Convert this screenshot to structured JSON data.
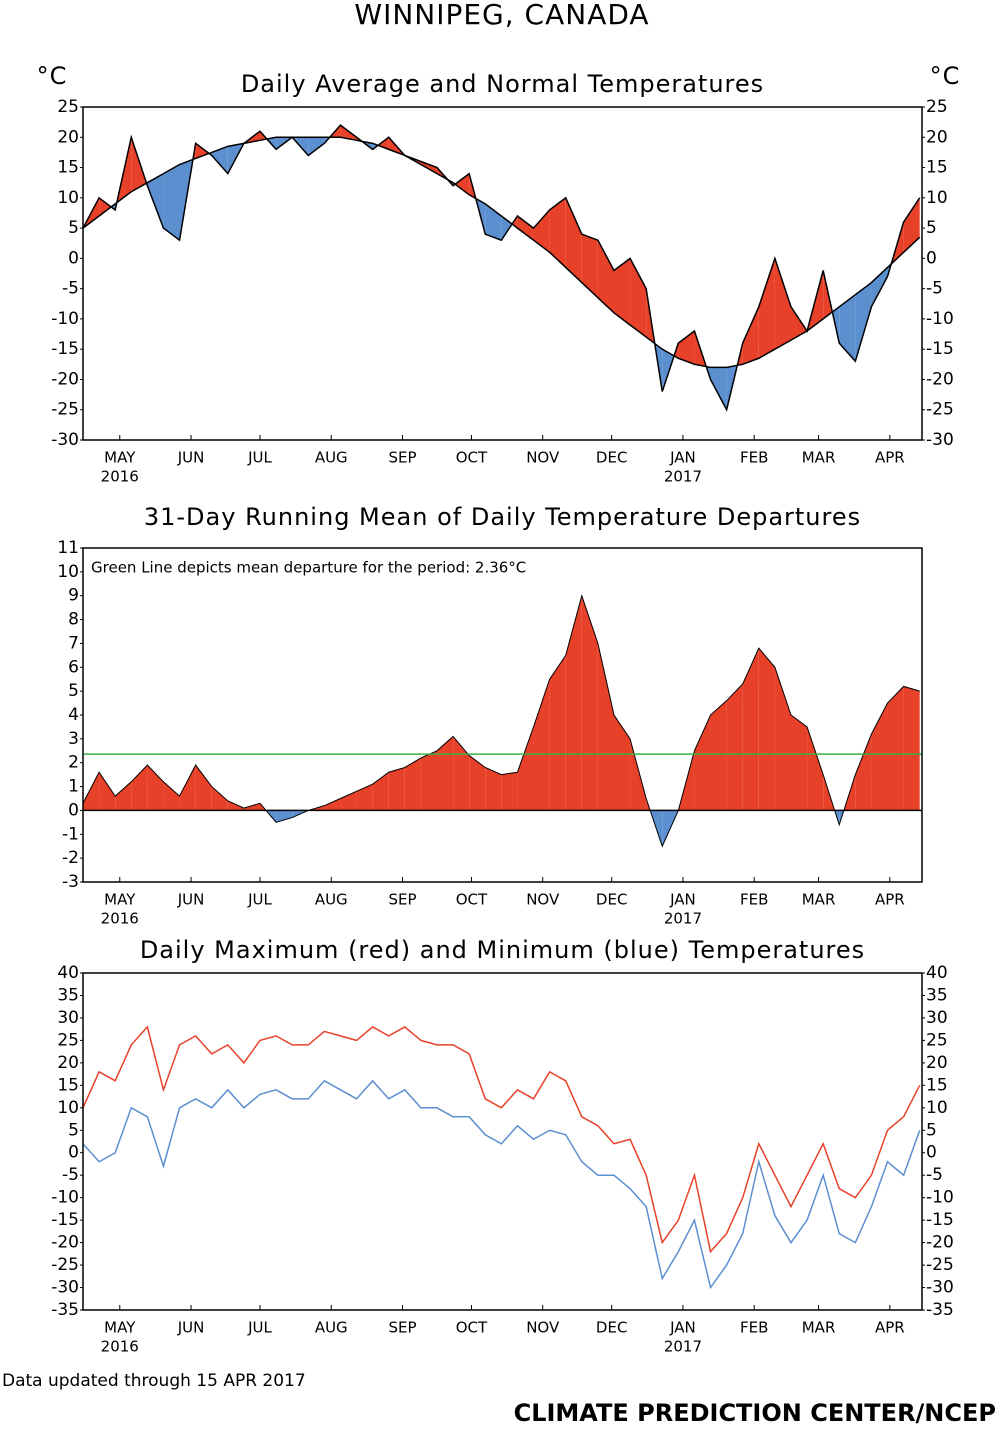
{
  "title": "WINNIPEG, CANADA",
  "footer_left": "Data updated through 15 APR 2017",
  "footer_right": "CLIMATE PREDICTION CENTER/NCEP",
  "chart_data": [
    {
      "type": "departure",
      "title": "Daily Average and Normal Temperatures",
      "y_unit": "°C",
      "right_axis": true,
      "x": [
        0,
        7,
        14,
        21,
        28,
        35,
        42,
        49,
        56,
        63,
        70,
        77,
        84,
        91,
        98,
        105,
        112,
        119,
        126,
        133,
        140,
        147,
        154,
        161,
        168,
        175,
        182,
        189,
        196,
        203,
        210,
        217,
        224,
        231,
        238,
        245,
        252,
        259,
        266,
        273,
        280,
        287,
        294,
        301,
        308,
        315,
        322,
        329,
        336,
        343,
        350,
        357,
        364
      ],
      "xlim": [
        0,
        365
      ],
      "xticks": [
        {
          "value": 16,
          "label": "MAY"
        },
        {
          "value": 47,
          "label": "JUN"
        },
        {
          "value": 77,
          "label": "JUL"
        },
        {
          "value": 108,
          "label": "AUG"
        },
        {
          "value": 139,
          "label": "SEP"
        },
        {
          "value": 169,
          "label": "OCT"
        },
        {
          "value": 200,
          "label": "NOV"
        },
        {
          "value": 230,
          "label": "DEC"
        },
        {
          "value": 261,
          "label": "JAN"
        },
        {
          "value": 292,
          "label": "FEB"
        },
        {
          "value": 320,
          "label": "MAR"
        },
        {
          "value": 351,
          "label": "APR"
        }
      ],
      "year_labels": [
        {
          "value": 16,
          "label": "2016"
        },
        {
          "value": 261,
          "label": "2017"
        }
      ],
      "ylim": [
        -30,
        25
      ],
      "yticks": [
        -30,
        -25,
        -20,
        -15,
        -10,
        -5,
        0,
        5,
        10,
        15,
        20,
        25
      ],
      "pos_color": "#e8412a",
      "neg_color": "#5b8fd0",
      "series": [
        {
          "color": "#000000",
          "values": [
            5,
            10,
            8,
            20,
            12,
            5,
            3,
            19,
            17,
            14,
            19,
            21,
            18,
            20,
            17,
            19,
            22,
            20,
            18,
            20,
            17,
            16,
            15,
            12,
            14,
            4,
            3,
            7,
            5,
            8,
            10,
            4,
            3,
            -2,
            0,
            -5,
            -22,
            -14,
            -12,
            -20,
            -25,
            -14,
            -8,
            0,
            -8,
            -12,
            -2,
            -14,
            -17,
            -8,
            -3,
            6,
            10
          ]
        },
        {
          "color": "#000000",
          "values": [
            5,
            7,
            9,
            11,
            12.5,
            14,
            15.5,
            16.5,
            17.5,
            18.5,
            19,
            19.5,
            20,
            20,
            20,
            20,
            20,
            19.5,
            19,
            18,
            17,
            15.5,
            14,
            12.5,
            10.5,
            9,
            7,
            5,
            3,
            1,
            -1.5,
            -4,
            -6.5,
            -9,
            -11,
            -13,
            -15,
            -16.5,
            -17.5,
            -18,
            -18,
            -17.5,
            -16.5,
            -15,
            -13.5,
            -12,
            -10,
            -8,
            -6,
            -4,
            -1.5,
            1,
            3.5
          ]
        }
      ]
    },
    {
      "type": "area",
      "title": "31-Day Running Mean of Daily Temperature Departures",
      "right_axis": false,
      "x": [
        0,
        7,
        14,
        21,
        28,
        35,
        42,
        49,
        56,
        63,
        70,
        77,
        84,
        91,
        98,
        105,
        112,
        119,
        126,
        133,
        140,
        147,
        154,
        161,
        168,
        175,
        182,
        189,
        196,
        203,
        210,
        217,
        224,
        231,
        238,
        245,
        252,
        259,
        266,
        273,
        280,
        287,
        294,
        301,
        308,
        315,
        322,
        329,
        336,
        343,
        350,
        357,
        364
      ],
      "xlim": [
        0,
        365
      ],
      "xticks": [
        {
          "value": 16,
          "label": "MAY"
        },
        {
          "value": 47,
          "label": "JUN"
        },
        {
          "value": 77,
          "label": "JUL"
        },
        {
          "value": 108,
          "label": "AUG"
        },
        {
          "value": 139,
          "label": "SEP"
        },
        {
          "value": 169,
          "label": "OCT"
        },
        {
          "value": 200,
          "label": "NOV"
        },
        {
          "value": 230,
          "label": "DEC"
        },
        {
          "value": 261,
          "label": "JAN"
        },
        {
          "value": 292,
          "label": "FEB"
        },
        {
          "value": 320,
          "label": "MAR"
        },
        {
          "value": 351,
          "label": "APR"
        }
      ],
      "year_labels": [
        {
          "value": 16,
          "label": "2016"
        },
        {
          "value": 261,
          "label": "2017"
        }
      ],
      "ylim": [
        -3,
        11
      ],
      "yticks": [
        -3,
        -2,
        -1,
        0,
        1,
        2,
        3,
        4,
        5,
        6,
        7,
        8,
        9,
        10,
        11
      ],
      "pos_color": "#e8412a",
      "neg_color": "#5b8fd0",
      "values": [
        0.3,
        1.6,
        0.6,
        1.2,
        1.9,
        1.2,
        0.6,
        1.9,
        1.0,
        0.4,
        0.1,
        0.3,
        -0.5,
        -0.3,
        0,
        0.2,
        0.5,
        0.8,
        1.1,
        1.6,
        1.8,
        2.2,
        2.5,
        3.1,
        2.3,
        1.8,
        1.5,
        1.6,
        3.5,
        5.5,
        6.5,
        9,
        7,
        4,
        3,
        0.5,
        -1.5,
        0,
        2.5,
        4,
        4.6,
        5.3,
        6.8,
        6,
        4,
        3.5,
        1.5,
        -0.6,
        1.5,
        3.2,
        4.5,
        5.2,
        5
      ],
      "mean_line": {
        "value": 2.36,
        "label": "Green Line depicts mean departure for the period: 2.36°C",
        "color": "#3cb043"
      }
    },
    {
      "type": "line",
      "title": "Daily Maximum (red) and Minimum (blue) Temperatures",
      "right_axis": true,
      "x": [
        0,
        7,
        14,
        21,
        28,
        35,
        42,
        49,
        56,
        63,
        70,
        77,
        84,
        91,
        98,
        105,
        112,
        119,
        126,
        133,
        140,
        147,
        154,
        161,
        168,
        175,
        182,
        189,
        196,
        203,
        210,
        217,
        224,
        231,
        238,
        245,
        252,
        259,
        266,
        273,
        280,
        287,
        294,
        301,
        308,
        315,
        322,
        329,
        336,
        343,
        350,
        357,
        364
      ],
      "xlim": [
        0,
        365
      ],
      "xticks": [
        {
          "value": 16,
          "label": "MAY"
        },
        {
          "value": 47,
          "label": "JUN"
        },
        {
          "value": 77,
          "label": "JUL"
        },
        {
          "value": 108,
          "label": "AUG"
        },
        {
          "value": 139,
          "label": "SEP"
        },
        {
          "value": 169,
          "label": "OCT"
        },
        {
          "value": 200,
          "label": "NOV"
        },
        {
          "value": 230,
          "label": "DEC"
        },
        {
          "value": 261,
          "label": "JAN"
        },
        {
          "value": 292,
          "label": "FEB"
        },
        {
          "value": 320,
          "label": "MAR"
        },
        {
          "value": 351,
          "label": "APR"
        }
      ],
      "year_labels": [
        {
          "value": 16,
          "label": "2016"
        },
        {
          "value": 261,
          "label": "2017"
        }
      ],
      "ylim": [
        -35,
        40
      ],
      "yticks": [
        -35,
        -30,
        -25,
        -20,
        -15,
        -10,
        -5,
        0,
        5,
        10,
        15,
        20,
        25,
        30,
        35,
        40
      ],
      "series": [
        {
          "color": "#e8412a",
          "values": [
            10,
            18,
            16,
            24,
            28,
            14,
            24,
            26,
            22,
            24,
            20,
            25,
            26,
            24,
            24,
            27,
            26,
            25,
            28,
            26,
            28,
            25,
            24,
            24,
            22,
            12,
            10,
            14,
            12,
            18,
            16,
            8,
            6,
            2,
            3,
            -5,
            -20,
            -15,
            -5,
            -22,
            -18,
            -10,
            2,
            -5,
            -12,
            -5,
            2,
            -8,
            -10,
            -5,
            5,
            8,
            15
          ]
        },
        {
          "color": "#5b8fd0",
          "values": [
            2,
            -2,
            0,
            10,
            8,
            -3,
            10,
            12,
            10,
            14,
            10,
            13,
            14,
            12,
            12,
            16,
            14,
            12,
            16,
            12,
            14,
            10,
            10,
            8,
            8,
            4,
            2,
            6,
            3,
            5,
            4,
            -2,
            -5,
            -5,
            -8,
            -12,
            -28,
            -22,
            -15,
            -30,
            -25,
            -18,
            -2,
            -14,
            -20,
            -15,
            -5,
            -18,
            -20,
            -12,
            -2,
            -5,
            5
          ]
        }
      ]
    }
  ]
}
